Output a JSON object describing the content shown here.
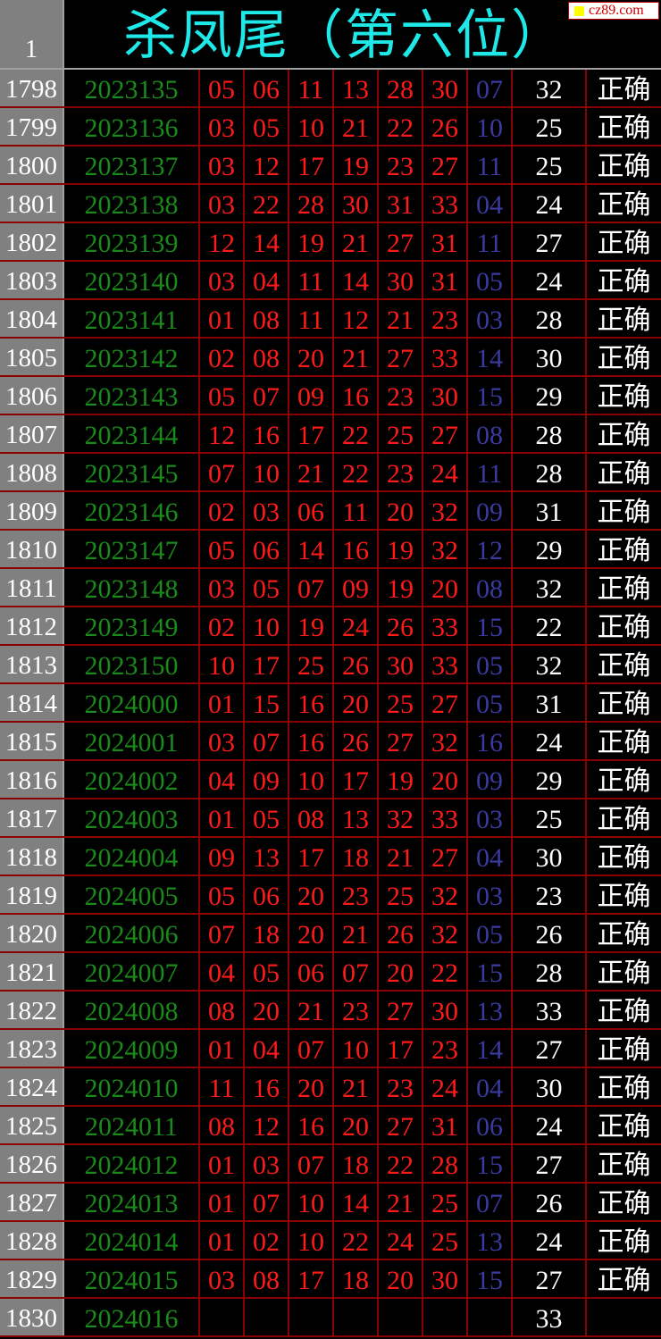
{
  "header": {
    "row_label": "1",
    "title": "杀凤尾（第六位）",
    "logo": "cz89.com"
  },
  "colors": {
    "title": "#1ee8e8",
    "issue": "#1a8a1a",
    "red_ball": "#ff1a1a",
    "blue_ball": "#3a3aa0",
    "grid": "#8b0000"
  },
  "rows": [
    {
      "n": "1798",
      "issue": "2023135",
      "reds": [
        "05",
        "06",
        "11",
        "13",
        "28",
        "30"
      ],
      "blue": "07",
      "sum": "32",
      "result": "正确"
    },
    {
      "n": "1799",
      "issue": "2023136",
      "reds": [
        "03",
        "05",
        "10",
        "21",
        "22",
        "26"
      ],
      "blue": "10",
      "sum": "25",
      "result": "正确"
    },
    {
      "n": "1800",
      "issue": "2023137",
      "reds": [
        "03",
        "12",
        "17",
        "19",
        "23",
        "27"
      ],
      "blue": "11",
      "sum": "25",
      "result": "正确"
    },
    {
      "n": "1801",
      "issue": "2023138",
      "reds": [
        "03",
        "22",
        "28",
        "30",
        "31",
        "33"
      ],
      "blue": "04",
      "sum": "24",
      "result": "正确"
    },
    {
      "n": "1802",
      "issue": "2023139",
      "reds": [
        "12",
        "14",
        "19",
        "21",
        "27",
        "31"
      ],
      "blue": "11",
      "sum": "27",
      "result": "正确"
    },
    {
      "n": "1803",
      "issue": "2023140",
      "reds": [
        "03",
        "04",
        "11",
        "14",
        "30",
        "31"
      ],
      "blue": "05",
      "sum": "24",
      "result": "正确"
    },
    {
      "n": "1804",
      "issue": "2023141",
      "reds": [
        "01",
        "08",
        "11",
        "12",
        "21",
        "23"
      ],
      "blue": "03",
      "sum": "28",
      "result": "正确"
    },
    {
      "n": "1805",
      "issue": "2023142",
      "reds": [
        "02",
        "08",
        "20",
        "21",
        "27",
        "33"
      ],
      "blue": "14",
      "sum": "30",
      "result": "正确"
    },
    {
      "n": "1806",
      "issue": "2023143",
      "reds": [
        "05",
        "07",
        "09",
        "16",
        "23",
        "30"
      ],
      "blue": "15",
      "sum": "29",
      "result": "正确"
    },
    {
      "n": "1807",
      "issue": "2023144",
      "reds": [
        "12",
        "16",
        "17",
        "22",
        "25",
        "27"
      ],
      "blue": "08",
      "sum": "28",
      "result": "正确"
    },
    {
      "n": "1808",
      "issue": "2023145",
      "reds": [
        "07",
        "10",
        "21",
        "22",
        "23",
        "24"
      ],
      "blue": "11",
      "sum": "28",
      "result": "正确"
    },
    {
      "n": "1809",
      "issue": "2023146",
      "reds": [
        "02",
        "03",
        "06",
        "11",
        "20",
        "32"
      ],
      "blue": "09",
      "sum": "31",
      "result": "正确"
    },
    {
      "n": "1810",
      "issue": "2023147",
      "reds": [
        "05",
        "06",
        "14",
        "16",
        "19",
        "32"
      ],
      "blue": "12",
      "sum": "29",
      "result": "正确"
    },
    {
      "n": "1811",
      "issue": "2023148",
      "reds": [
        "03",
        "05",
        "07",
        "09",
        "19",
        "20"
      ],
      "blue": "08",
      "sum": "32",
      "result": "正确"
    },
    {
      "n": "1812",
      "issue": "2023149",
      "reds": [
        "02",
        "10",
        "19",
        "24",
        "26",
        "33"
      ],
      "blue": "15",
      "sum": "22",
      "result": "正确"
    },
    {
      "n": "1813",
      "issue": "2023150",
      "reds": [
        "10",
        "17",
        "25",
        "26",
        "30",
        "33"
      ],
      "blue": "05",
      "sum": "32",
      "result": "正确"
    },
    {
      "n": "1814",
      "issue": "2024000",
      "reds": [
        "01",
        "15",
        "16",
        "20",
        "25",
        "27"
      ],
      "blue": "05",
      "sum": "31",
      "result": "正确"
    },
    {
      "n": "1815",
      "issue": "2024001",
      "reds": [
        "03",
        "07",
        "16",
        "26",
        "27",
        "32"
      ],
      "blue": "16",
      "sum": "24",
      "result": "正确"
    },
    {
      "n": "1816",
      "issue": "2024002",
      "reds": [
        "04",
        "09",
        "10",
        "17",
        "19",
        "20"
      ],
      "blue": "09",
      "sum": "29",
      "result": "正确"
    },
    {
      "n": "1817",
      "issue": "2024003",
      "reds": [
        "01",
        "05",
        "08",
        "13",
        "32",
        "33"
      ],
      "blue": "03",
      "sum": "25",
      "result": "正确"
    },
    {
      "n": "1818",
      "issue": "2024004",
      "reds": [
        "09",
        "13",
        "17",
        "18",
        "21",
        "27"
      ],
      "blue": "04",
      "sum": "30",
      "result": "正确"
    },
    {
      "n": "1819",
      "issue": "2024005",
      "reds": [
        "05",
        "06",
        "20",
        "23",
        "25",
        "32"
      ],
      "blue": "03",
      "sum": "23",
      "result": "正确"
    },
    {
      "n": "1820",
      "issue": "2024006",
      "reds": [
        "07",
        "18",
        "20",
        "21",
        "26",
        "32"
      ],
      "blue": "05",
      "sum": "26",
      "result": "正确"
    },
    {
      "n": "1821",
      "issue": "2024007",
      "reds": [
        "04",
        "05",
        "06",
        "07",
        "20",
        "22"
      ],
      "blue": "15",
      "sum": "28",
      "result": "正确"
    },
    {
      "n": "1822",
      "issue": "2024008",
      "reds": [
        "08",
        "20",
        "21",
        "23",
        "27",
        "30"
      ],
      "blue": "13",
      "sum": "33",
      "result": "正确"
    },
    {
      "n": "1823",
      "issue": "2024009",
      "reds": [
        "01",
        "04",
        "07",
        "10",
        "17",
        "23"
      ],
      "blue": "14",
      "sum": "27",
      "result": "正确"
    },
    {
      "n": "1824",
      "issue": "2024010",
      "reds": [
        "11",
        "16",
        "20",
        "21",
        "23",
        "24"
      ],
      "blue": "04",
      "sum": "30",
      "result": "正确"
    },
    {
      "n": "1825",
      "issue": "2024011",
      "reds": [
        "08",
        "12",
        "16",
        "20",
        "27",
        "31"
      ],
      "blue": "06",
      "sum": "24",
      "result": "正确"
    },
    {
      "n": "1826",
      "issue": "2024012",
      "reds": [
        "01",
        "03",
        "07",
        "18",
        "22",
        "28"
      ],
      "blue": "15",
      "sum": "27",
      "result": "正确"
    },
    {
      "n": "1827",
      "issue": "2024013",
      "reds": [
        "01",
        "07",
        "10",
        "14",
        "21",
        "25"
      ],
      "blue": "07",
      "sum": "26",
      "result": "正确"
    },
    {
      "n": "1828",
      "issue": "2024014",
      "reds": [
        "01",
        "02",
        "10",
        "22",
        "24",
        "25"
      ],
      "blue": "13",
      "sum": "24",
      "result": "正确"
    },
    {
      "n": "1829",
      "issue": "2024015",
      "reds": [
        "03",
        "08",
        "17",
        "18",
        "20",
        "30"
      ],
      "blue": "15",
      "sum": "27",
      "result": "正确"
    },
    {
      "n": "1830",
      "issue": "2024016",
      "reds": [
        "",
        "",
        "",
        "",
        "",
        ""
      ],
      "blue": "",
      "sum": "33",
      "result": ""
    }
  ]
}
